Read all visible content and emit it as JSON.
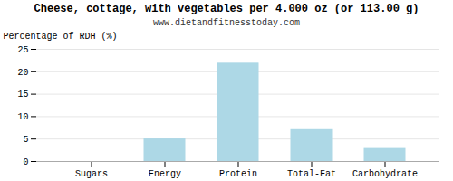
{
  "chart_data": {
    "type": "bar",
    "title": "Cheese, cottage, with vegetables per 4.000 oz (or 113.00 g)",
    "subtitle": "www.dietandfitnesstoday.com",
    "categories": [
      "Sugars",
      "Energy",
      "Protein",
      "Total-Fat",
      "Carbohydrate"
    ],
    "values": [
      0,
      5.0,
      21.8,
      7.2,
      3.0
    ],
    "color": "#add8e6",
    "ylabel": "Percentage of RDH (%)",
    "ylim": [
      0,
      25
    ],
    "yticks": [
      0,
      5,
      10,
      15,
      20,
      25
    ],
    "grid": true
  }
}
